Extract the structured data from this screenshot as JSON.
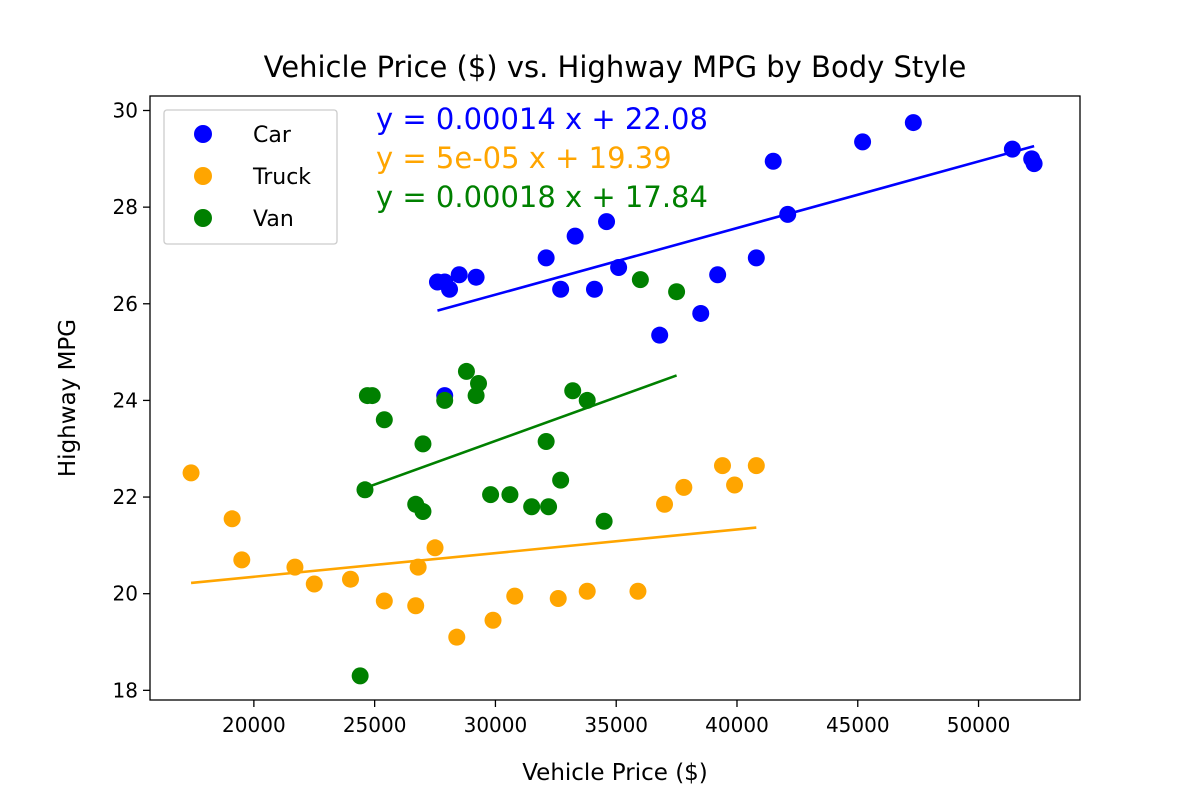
{
  "chart_data": {
    "type": "scatter",
    "title": "Vehicle Price ($) vs. Highway MPG by Body Style",
    "xlabel": "Vehicle Price ($)",
    "ylabel": "Highway MPG",
    "xlim": [
      15700,
      54200
    ],
    "ylim": [
      17.8,
      30.3
    ],
    "xticks": [
      20000,
      25000,
      30000,
      35000,
      40000,
      45000,
      50000
    ],
    "yticks": [
      18,
      20,
      22,
      24,
      26,
      28,
      30
    ],
    "grid": false,
    "legend_position": "top-left",
    "series": [
      {
        "name": "Car",
        "color": "#0000ff",
        "points": [
          [
            27600,
            26.45
          ],
          [
            27900,
            26.45
          ],
          [
            28100,
            26.3
          ],
          [
            28500,
            26.6
          ],
          [
            29200,
            26.55
          ],
          [
            27900,
            24.1
          ],
          [
            32100,
            26.95
          ],
          [
            32700,
            26.3
          ],
          [
            33300,
            27.4
          ],
          [
            34100,
            26.3
          ],
          [
            34600,
            27.7
          ],
          [
            35100,
            26.75
          ],
          [
            36800,
            25.35
          ],
          [
            38500,
            25.8
          ],
          [
            39200,
            26.6
          ],
          [
            40800,
            26.95
          ],
          [
            41500,
            28.95
          ],
          [
            42100,
            27.85
          ],
          [
            45200,
            29.35
          ],
          [
            47300,
            29.75
          ],
          [
            51400,
            29.2
          ],
          [
            52200,
            29.0
          ],
          [
            52300,
            28.9
          ]
        ],
        "fit_x": [
          27600,
          52300
        ],
        "equation": "y = 0.00014 x + 22.08"
      },
      {
        "name": "Truck",
        "color": "#ffa500",
        "points": [
          [
            17400,
            22.5
          ],
          [
            19100,
            21.55
          ],
          [
            19500,
            20.7
          ],
          [
            21700,
            20.55
          ],
          [
            22500,
            20.2
          ],
          [
            24000,
            20.3
          ],
          [
            25400,
            19.85
          ],
          [
            26700,
            19.75
          ],
          [
            26800,
            20.55
          ],
          [
            27500,
            20.95
          ],
          [
            28400,
            19.1
          ],
          [
            29900,
            19.45
          ],
          [
            30800,
            19.95
          ],
          [
            32600,
            19.9
          ],
          [
            33800,
            20.05
          ],
          [
            35900,
            20.05
          ],
          [
            37000,
            21.85
          ],
          [
            37800,
            22.2
          ],
          [
            39400,
            22.65
          ],
          [
            39900,
            22.25
          ],
          [
            40800,
            22.65
          ]
        ],
        "fit_x": [
          17400,
          40800
        ],
        "equation": "y = 5e-05 x + 19.39"
      },
      {
        "name": "Van",
        "color": "#008000",
        "points": [
          [
            24400,
            18.3
          ],
          [
            24600,
            22.15
          ],
          [
            24700,
            24.1
          ],
          [
            24900,
            24.1
          ],
          [
            25400,
            23.6
          ],
          [
            26700,
            21.85
          ],
          [
            27000,
            23.1
          ],
          [
            27000,
            21.7
          ],
          [
            27900,
            24.0
          ],
          [
            28800,
            24.6
          ],
          [
            29200,
            24.1
          ],
          [
            29300,
            24.35
          ],
          [
            29800,
            22.05
          ],
          [
            30600,
            22.05
          ],
          [
            31500,
            21.8
          ],
          [
            32200,
            21.8
          ],
          [
            32100,
            23.15
          ],
          [
            32700,
            22.35
          ],
          [
            33200,
            24.2
          ],
          [
            33800,
            24.0
          ],
          [
            34500,
            21.5
          ],
          [
            36000,
            26.5
          ],
          [
            37500,
            26.25
          ]
        ],
        "fit_x": [
          24600,
          37500
        ],
        "equation": "y = 0.00018 x + 17.84"
      }
    ]
  }
}
